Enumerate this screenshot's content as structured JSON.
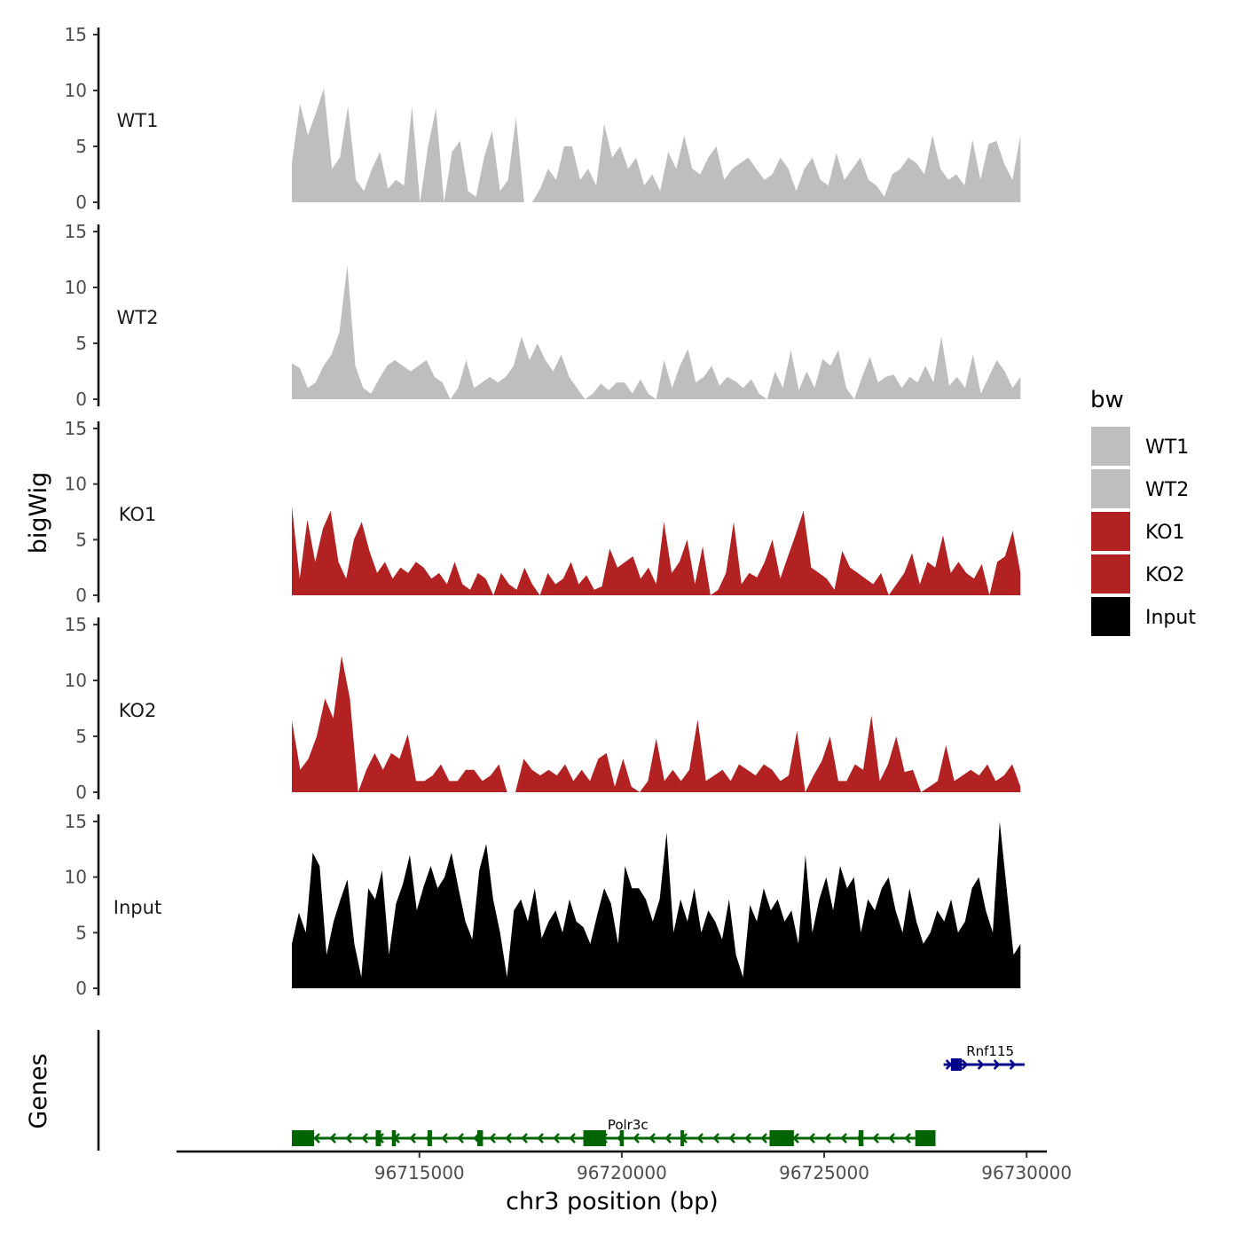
{
  "chart_data": {
    "type": "area",
    "ylabel": "bigWig",
    "ylabel_genes": "Genes",
    "xlabel": "chr3 position (bp)",
    "xlim": [
      96709000,
      96730500
    ],
    "ylim": [
      0,
      15
    ],
    "y_ticks": [
      "0",
      "5",
      "10",
      "15"
    ],
    "x_ticks": [
      {
        "value": 96715000,
        "label": "96715000"
      },
      {
        "value": 96720000,
        "label": "96720000"
      },
      {
        "value": 96725000,
        "label": "96725000"
      },
      {
        "value": 96730000,
        "label": "96730000"
      }
    ],
    "legend": {
      "title": "bw",
      "position": "right",
      "entries": [
        {
          "label": "WT1",
          "color": "#bebebe"
        },
        {
          "label": "WT2",
          "color": "#bebebe"
        },
        {
          "label": "KO1",
          "color": "#b22222"
        },
        {
          "label": "KO2",
          "color": "#b22222"
        },
        {
          "label": "Input",
          "color": "#000000"
        }
      ]
    },
    "region": [
      96711850,
      96729850
    ],
    "series": [
      {
        "name": "WT1",
        "color": "#bebebe",
        "values": [
          3.5,
          8.8,
          6,
          8,
          10.2,
          3,
          4,
          8.6,
          2,
          1,
          3,
          4.5,
          1.2,
          2,
          1.5,
          8.6,
          0,
          5,
          8.4,
          0,
          4.5,
          5.5,
          1,
          0.5,
          4,
          6.4,
          1,
          2,
          7.6,
          0,
          0,
          1.2,
          3,
          2,
          5,
          5,
          2,
          3,
          1.5,
          7,
          4,
          5,
          3,
          4,
          1.5,
          2.5,
          1,
          4.5,
          3,
          6,
          3,
          2.5,
          4,
          5,
          2,
          3,
          3.5,
          4,
          3,
          2,
          2.5,
          4,
          3,
          1,
          3,
          4,
          2,
          1.5,
          4.4,
          2,
          3,
          4,
          2,
          1.5,
          0.5,
          2.5,
          3,
          4,
          3.5,
          2.5,
          6,
          3,
          2,
          2.5,
          1.5,
          5.6,
          2,
          5.2,
          5.5,
          3.4,
          2,
          6
        ]
      },
      {
        "name": "WT2",
        "color": "#bebebe",
        "values": [
          3.2,
          2.8,
          1,
          1.5,
          3,
          4,
          6,
          12,
          3,
          1,
          0.5,
          1.8,
          3,
          3.5,
          3,
          2.5,
          3,
          3.5,
          2,
          1.5,
          0,
          1,
          3.5,
          1,
          1.5,
          2,
          1.5,
          2,
          3,
          5.6,
          3.5,
          5,
          3.5,
          2.5,
          4,
          2,
          1,
          0,
          0.5,
          1.4,
          0.8,
          1.5,
          1.5,
          0.5,
          1.8,
          0.5,
          0,
          3.5,
          1,
          3,
          4.5,
          1.5,
          2,
          3,
          1.2,
          2,
          1.6,
          1,
          1.8,
          0.5,
          0,
          2.5,
          1,
          4.4,
          0.8,
          2.5,
          1,
          3.6,
          3,
          4.4,
          1,
          0,
          2,
          3.8,
          1.5,
          2,
          2.2,
          1,
          2,
          1.5,
          3,
          1.5,
          5.6,
          1.2,
          2,
          1,
          4,
          0.5,
          2,
          3.5,
          2.5,
          1,
          2
        ]
      },
      {
        "name": "KO1",
        "color": "#b22222",
        "values": [
          8,
          1.5,
          6.8,
          3,
          6,
          7.6,
          3,
          1.5,
          5,
          6.6,
          4,
          2,
          3,
          1.5,
          2.5,
          2,
          3,
          2.5,
          1.5,
          2,
          1,
          3,
          1,
          0.5,
          2,
          1.5,
          0,
          2,
          1,
          0.5,
          2.5,
          1,
          0,
          2,
          1,
          1.5,
          3,
          1,
          1.8,
          0.5,
          0.8,
          4.2,
          2.5,
          3,
          3.5,
          1.5,
          2.5,
          1,
          6.6,
          2,
          3,
          5,
          1,
          4.4,
          0,
          0.5,
          2,
          6.6,
          1,
          2,
          1.6,
          3,
          5,
          1.5,
          3.5,
          5.5,
          7.6,
          2.5,
          2,
          1.5,
          0.5,
          4,
          2.5,
          2,
          1.5,
          1,
          2,
          0,
          1,
          2,
          3.8,
          1,
          3,
          2.5,
          5.4,
          2,
          3,
          2,
          1.5,
          2.8,
          0,
          3,
          3.5,
          5.8,
          2
        ]
      },
      {
        "name": "KO2",
        "color": "#b22222",
        "values": [
          6.4,
          2,
          3,
          5,
          8.4,
          6.6,
          12.2,
          8.4,
          0,
          2,
          3.5,
          2,
          3.5,
          3,
          5.2,
          1,
          1,
          1.5,
          2.5,
          1,
          1,
          2,
          2,
          1,
          1.5,
          2.5,
          0,
          0,
          3,
          2,
          1.5,
          2,
          1.5,
          2.5,
          1,
          2,
          1,
          3,
          3.5,
          0.5,
          3,
          0.5,
          0,
          1,
          4.8,
          1,
          2,
          1,
          2,
          6.5,
          1,
          1.5,
          2,
          1,
          2.5,
          2,
          1.5,
          2.5,
          2,
          1,
          1.5,
          5.5,
          0,
          1.5,
          2.8,
          5,
          1,
          1,
          2.5,
          2,
          6.9,
          1,
          2.5,
          5,
          1.8,
          2,
          0,
          0.5,
          1,
          4.2,
          1,
          1.5,
          2,
          1.5,
          2.5,
          1,
          1.5,
          2.5,
          0.5
        ]
      },
      {
        "name": "Input",
        "color": "#000000",
        "values": [
          4,
          6.8,
          5,
          12.2,
          11,
          3,
          6,
          8,
          9.8,
          4,
          1,
          9,
          8,
          10.6,
          3,
          7.6,
          9.4,
          12,
          7,
          9.2,
          11,
          9,
          10,
          12.2,
          9,
          6,
          4.4,
          10.6,
          13,
          8,
          5,
          1,
          7,
          8,
          6,
          9,
          4.5,
          6,
          7,
          5,
          8,
          6,
          5.5,
          4,
          6.6,
          9,
          7.6,
          4,
          11,
          9,
          9,
          8,
          6,
          8,
          14,
          5,
          8,
          6,
          9,
          5,
          7,
          6,
          4.4,
          8,
          3,
          1,
          7.5,
          6,
          9,
          7,
          8,
          6,
          7,
          4,
          12,
          5,
          8,
          10,
          7,
          11,
          9,
          10,
          5,
          8,
          7,
          9,
          10,
          7,
          5,
          9,
          6,
          4,
          5,
          7,
          6,
          8,
          5,
          6,
          9,
          10,
          7,
          5,
          15,
          9,
          3,
          4
        ]
      }
    ],
    "genes": [
      {
        "name": "Polr3c",
        "strand": "-",
        "color": "#006400",
        "start": 96711850,
        "end": 96727250,
        "exons": [
          [
            96711850,
            96712400
          ],
          [
            96713920,
            96714050
          ],
          [
            96714320,
            96714420
          ],
          [
            96715200,
            96715310
          ],
          [
            96716430,
            96716570
          ],
          [
            96719050,
            96719610
          ],
          [
            96719950,
            96720050
          ],
          [
            96721450,
            96721520
          ],
          [
            96723650,
            96724250
          ],
          [
            96725850,
            96725970
          ],
          [
            96727250,
            96727750
          ]
        ]
      },
      {
        "name": "Rnf115",
        "strand": "+",
        "color": "#00008b",
        "start": 96727950,
        "end": 96729950,
        "exons": [
          [
            96728130,
            96728400
          ]
        ]
      }
    ]
  }
}
